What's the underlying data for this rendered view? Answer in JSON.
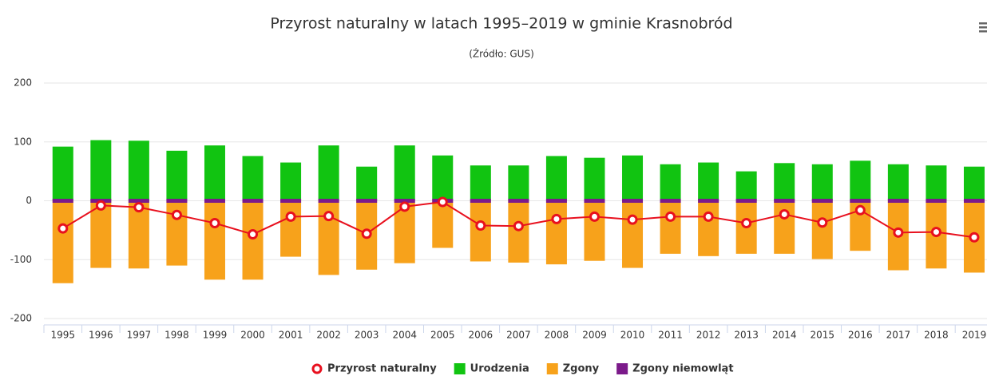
{
  "chart_data": {
    "type": "bar",
    "title": "Przyrost naturalny w latach 1995–2019 w gminie Krasnobród",
    "subtitle": "(Źródło: GUS)",
    "categories": [
      "1995",
      "1996",
      "1997",
      "1998",
      "1999",
      "2000",
      "2001",
      "2002",
      "2003",
      "2004",
      "2005",
      "2006",
      "2007",
      "2008",
      "2009",
      "2010",
      "2011",
      "2012",
      "2013",
      "2014",
      "2015",
      "2016",
      "2017",
      "2018",
      "2019"
    ],
    "series": [
      {
        "name": "Przyrost naturalny",
        "type": "line",
        "color": "#e8101e",
        "values": [
          -47,
          -8,
          -11,
          -24,
          -38,
          -57,
          -27,
          -26,
          -56,
          -10,
          -2,
          -42,
          -43,
          -31,
          -27,
          -32,
          -27,
          -27,
          -38,
          -23,
          -37,
          -16,
          -54,
          -53,
          -62
        ]
      },
      {
        "name": "Urodzenia",
        "color": "#11c411",
        "values": [
          92,
          103,
          102,
          85,
          94,
          76,
          65,
          94,
          58,
          94,
          77,
          60,
          60,
          76,
          73,
          77,
          62,
          65,
          50,
          64,
          62,
          68,
          62,
          60,
          58
        ]
      },
      {
        "name": "Zgony",
        "color": "#f7a21b",
        "values": [
          -140,
          -114,
          -115,
          -110,
          -134,
          -134,
          -95,
          -126,
          -117,
          -106,
          -80,
          -103,
          -105,
          -108,
          -102,
          -114,
          -90,
          -94,
          -90,
          -90,
          -99,
          -85,
          -118,
          -115,
          -122
        ]
      },
      {
        "name": "Zgony niemowląt",
        "color": "#7b1a8a",
        "values": [
          0,
          0,
          0,
          0,
          0,
          0,
          0,
          0,
          0,
          0,
          0,
          0,
          0,
          0,
          0,
          0,
          0,
          0,
          0,
          0,
          0,
          0,
          0,
          0,
          0
        ]
      }
    ],
    "ylim": [
      -200,
      200
    ],
    "yticks": [
      -200,
      -100,
      0,
      100,
      200
    ],
    "grid": true,
    "legend": "bottom"
  }
}
